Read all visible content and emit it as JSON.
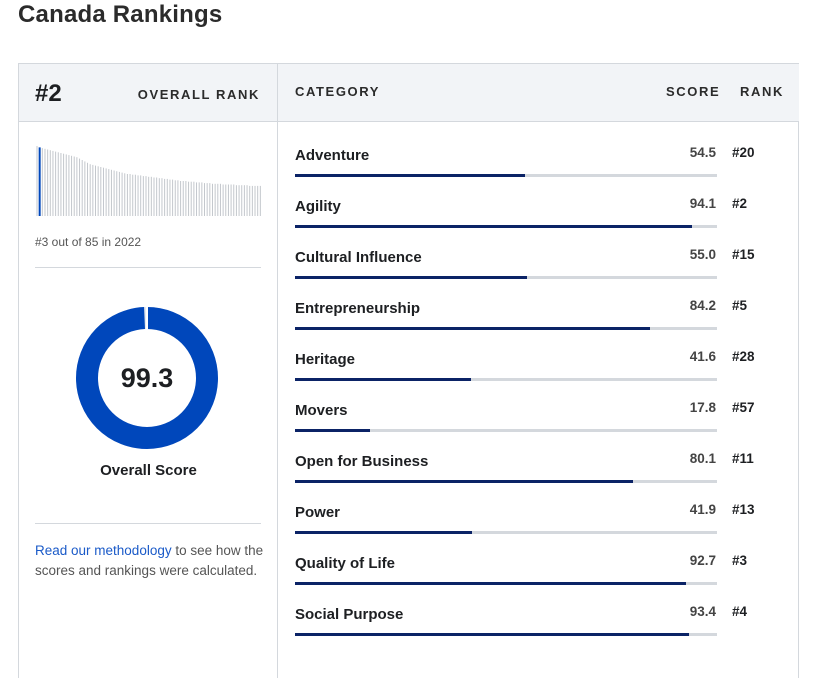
{
  "page": {
    "title": "Canada Rankings"
  },
  "overall": {
    "rank": "#2",
    "rank_label": "OVERALL RANK",
    "history_caption": "#3 out of 85 in 2022",
    "score": "99.3",
    "score_value": 99.3,
    "score_label": "Overall Score",
    "history_values": [
      1.0,
      0.98,
      0.97,
      0.96,
      0.95,
      0.94,
      0.93,
      0.92,
      0.91,
      0.9,
      0.89,
      0.88,
      0.87,
      0.86,
      0.85,
      0.84,
      0.82,
      0.8,
      0.78,
      0.76,
      0.74,
      0.73,
      0.72,
      0.71,
      0.7,
      0.69,
      0.68,
      0.67,
      0.66,
      0.65,
      0.64,
      0.63,
      0.62,
      0.61,
      0.6,
      0.6,
      0.59,
      0.59,
      0.58,
      0.58,
      0.57,
      0.57,
      0.56,
      0.56,
      0.55,
      0.55,
      0.54,
      0.54,
      0.53,
      0.53,
      0.52,
      0.52,
      0.51,
      0.51,
      0.5,
      0.5,
      0.5,
      0.49,
      0.49,
      0.49,
      0.48,
      0.48,
      0.48,
      0.47,
      0.47,
      0.47,
      0.46,
      0.46,
      0.46,
      0.46,
      0.45,
      0.45,
      0.45,
      0.45,
      0.45,
      0.44,
      0.44,
      0.44,
      0.44,
      0.44,
      0.43,
      0.43,
      0.43,
      0.43,
      0.43
    ],
    "highlight_index": 1
  },
  "methodology": {
    "link_text": "Read our methodology",
    "rest_text": " to see how the scores and rankings were calculated."
  },
  "table": {
    "headers": {
      "category": "CATEGORY",
      "score": "SCORE",
      "rank": "RANK"
    },
    "rows": [
      {
        "name": "Adventure",
        "score": "54.5",
        "rank": "#20",
        "value": 54.5
      },
      {
        "name": "Agility",
        "score": "94.1",
        "rank": "#2",
        "value": 94.1
      },
      {
        "name": "Cultural Influence",
        "score": "55.0",
        "rank": "#15",
        "value": 55.0
      },
      {
        "name": "Entrepreneurship",
        "score": "84.2",
        "rank": "#5",
        "value": 84.2
      },
      {
        "name": "Heritage",
        "score": "41.6",
        "rank": "#28",
        "value": 41.6
      },
      {
        "name": "Movers",
        "score": "17.8",
        "rank": "#57",
        "value": 17.8
      },
      {
        "name": "Open for Business",
        "score": "80.1",
        "rank": "#11",
        "value": 80.1
      },
      {
        "name": "Power",
        "score": "41.9",
        "rank": "#13",
        "value": 41.9
      },
      {
        "name": "Quality of Life",
        "score": "92.7",
        "rank": "#3",
        "value": 92.7
      },
      {
        "name": "Social Purpose",
        "score": "93.4",
        "rank": "#4",
        "value": 93.4
      }
    ]
  },
  "colors": {
    "accent": "#0047bb",
    "bar_fill": "#0b2366",
    "track": "#d4d8dd",
    "link": "#1a5ac8",
    "header_bg": "#f2f4f7"
  }
}
